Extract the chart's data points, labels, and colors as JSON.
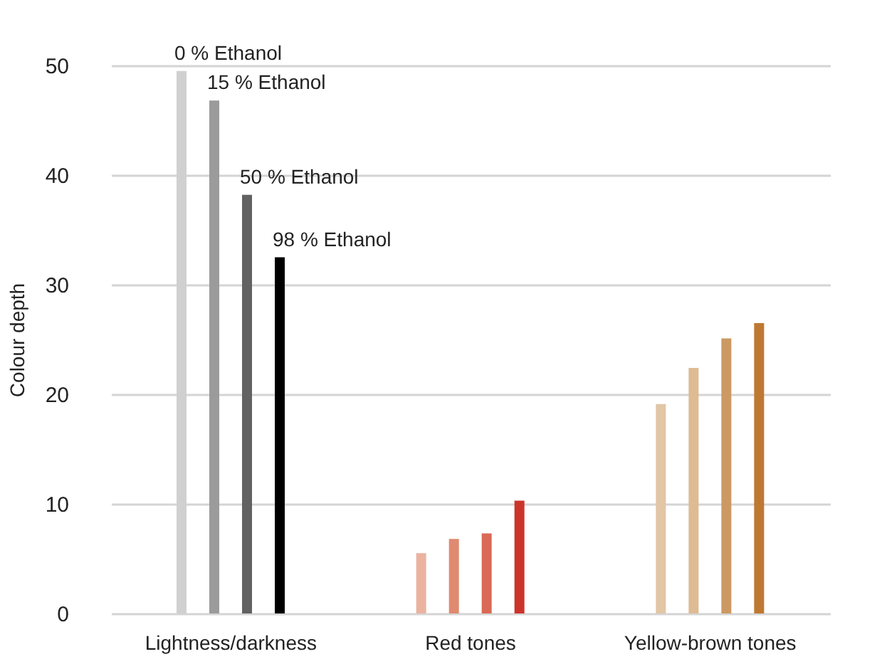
{
  "chart_data": {
    "type": "bar",
    "ylabel": "Colour depth",
    "categories": [
      "Lightness/darkness",
      "Red tones",
      "Yellow-brown tones"
    ],
    "series": [
      {
        "name": "0 % Ethanol",
        "colors": [
          "#d0d0d0",
          "#eab3a0",
          "#e2c6a6"
        ],
        "values": [
          49.5,
          5.5,
          19.1
        ]
      },
      {
        "name": "15 % Ethanol",
        "colors": [
          "#9b9b9b",
          "#e08a70",
          "#debb93"
        ],
        "values": [
          46.8,
          6.8,
          22.4
        ]
      },
      {
        "name": "50 % Ethanol",
        "colors": [
          "#626262",
          "#d96a55",
          "#cc9962"
        ],
        "values": [
          38.2,
          7.3,
          25.1
        ]
      },
      {
        "name": "98 % Ethanol",
        "colors": [
          "#000000",
          "#cc342b",
          "#bf7831"
        ],
        "values": [
          32.5,
          10.3,
          26.5
        ]
      }
    ],
    "ylim": [
      0,
      50
    ],
    "yticks": [
      0,
      10,
      20,
      30,
      40,
      50
    ],
    "grid": "y",
    "legend": false
  }
}
